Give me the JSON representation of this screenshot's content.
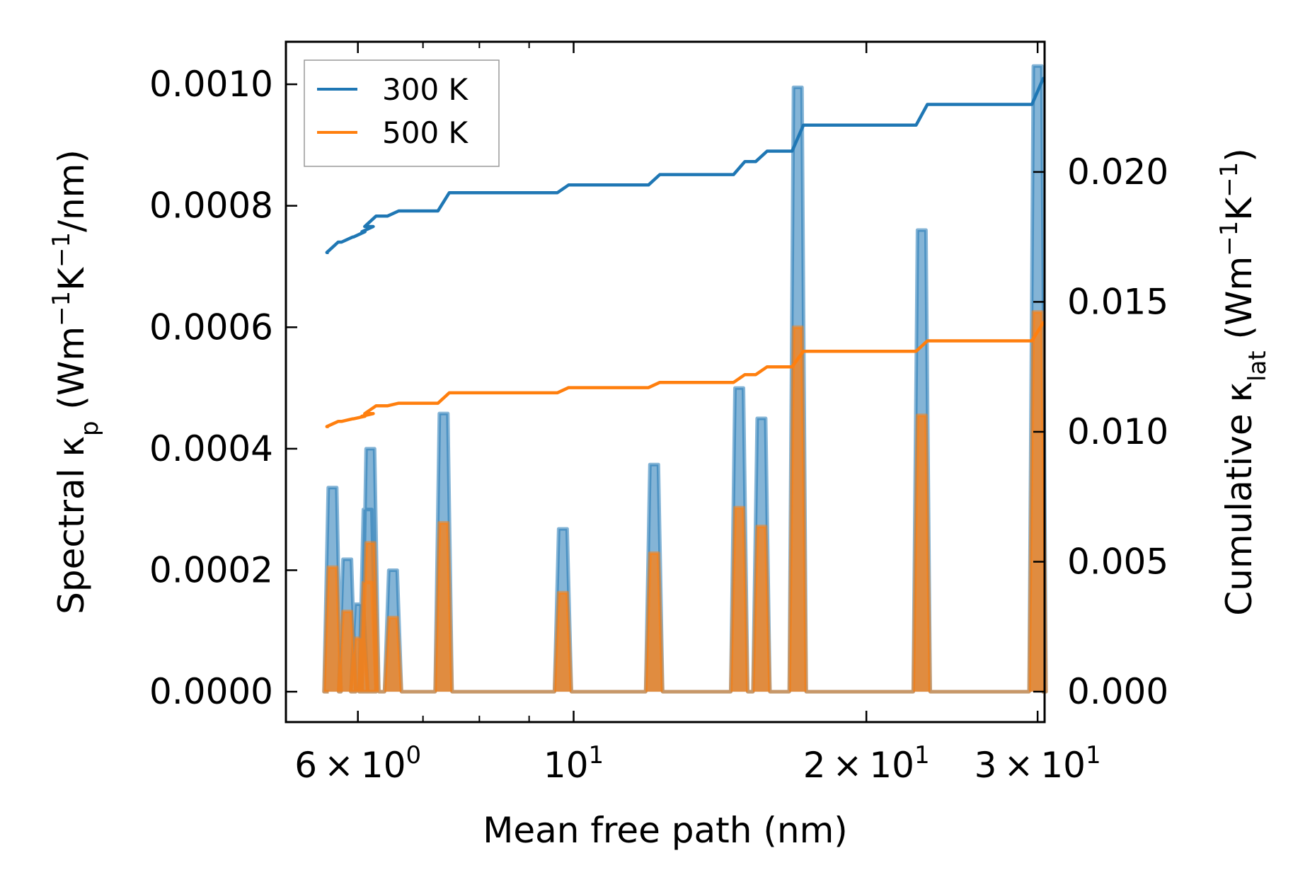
{
  "chart_data": {
    "type": "line",
    "xscale": "log",
    "xlim": [
      5.06,
      30.5
    ],
    "xlabel": "Mean free path (nm)",
    "ylabel_left": {
      "main": "Spectral κ",
      "sub": "p",
      "unit_open": " (Wm",
      "sup1": "−1",
      "mid": "K",
      "sup2": "−1",
      "unit_close": "/nm)"
    },
    "ylabel_right": {
      "main": "Cumulative κ",
      "sub": "lat",
      "unit_open": " (Wm",
      "sup1": "−1",
      "mid": "K",
      "sup2": "−1",
      "unit_close": ")"
    },
    "ylim_left": [
      -5e-05,
      0.00107
    ],
    "ylim_right": [
      -0.00117,
      0.02501
    ],
    "xticks_major": [
      {
        "value": 6,
        "mantissa": "6",
        "exp": "0"
      },
      {
        "value": 10,
        "mantissa": "",
        "exp": "1"
      },
      {
        "value": 20,
        "mantissa": "2",
        "exp": "1"
      },
      {
        "value": 30,
        "mantissa": "3",
        "exp": "1"
      }
    ],
    "xticks_minor": [
      7,
      8,
      9
    ],
    "yticks_left": [
      "0.0000",
      "0.0002",
      "0.0004",
      "0.0006",
      "0.0008",
      "0.0010"
    ],
    "yticks_left_values": [
      0,
      0.0002,
      0.0004,
      0.0006,
      0.0008,
      0.001
    ],
    "yticks_right": [
      "0.000",
      "0.005",
      "0.010",
      "0.015",
      "0.020"
    ],
    "yticks_right_values": [
      0,
      0.005,
      0.01,
      0.015,
      0.02
    ],
    "peaks_x": [
      5.65,
      5.85,
      6.02,
      6.14,
      6.18,
      6.52,
      7.35,
      9.75,
      12.1,
      14.8,
      15.6,
      17.0,
      22.8,
      30.0
    ],
    "series": [
      {
        "name": "300 K",
        "color": "#1f77b4",
        "spectral": [
          0.000336,
          0.000218,
          0.000144,
          0.0003,
          0.0004,
          0.0002,
          0.000458,
          0.000268,
          0.000374,
          0.0005,
          0.00045,
          0.000995,
          0.00076,
          0.00103
        ],
        "cumulative_start": 0.0169,
        "cumulative": [
          0.0173,
          0.0175,
          0.0177,
          0.0179,
          0.0183,
          0.0185,
          0.0192,
          0.0195,
          0.0199,
          0.0204,
          0.0208,
          0.0218,
          0.0226,
          0.0236
        ]
      },
      {
        "name": "500 K",
        "color": "#ff7f0e",
        "spectral": [
          0.000205,
          0.000132,
          8.8e-05,
          0.00018,
          0.000245,
          0.000122,
          0.000278,
          0.000163,
          0.000228,
          0.000303,
          0.000272,
          0.0006,
          0.000455,
          0.000625
        ],
        "cumulative_start": 0.0102,
        "cumulative": [
          0.0104,
          0.0105,
          0.0106,
          0.0107,
          0.011,
          0.0111,
          0.0115,
          0.0117,
          0.0119,
          0.0122,
          0.0125,
          0.0131,
          0.0135,
          0.0142
        ]
      }
    ],
    "legend_position": "upper-left"
  }
}
